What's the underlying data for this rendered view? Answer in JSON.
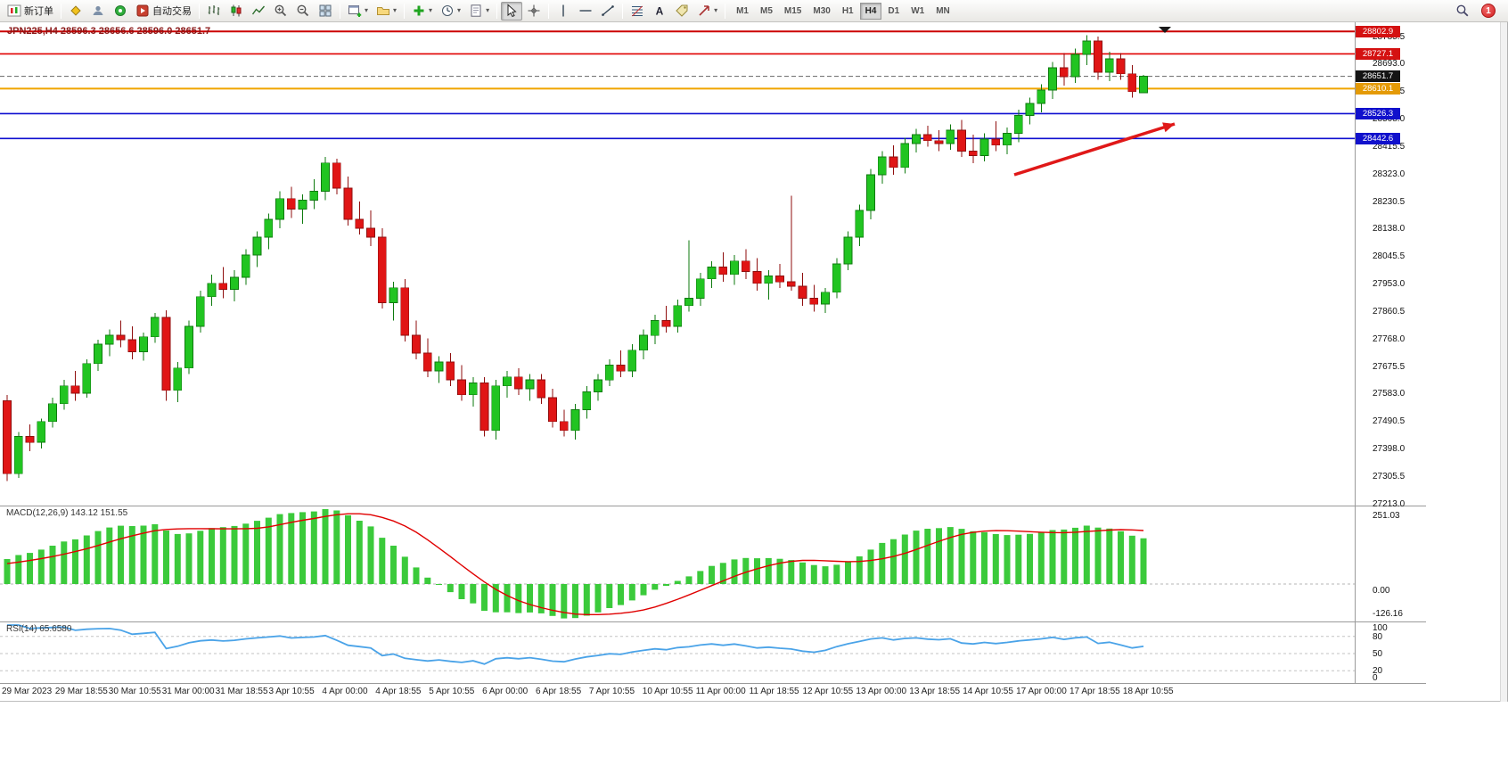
{
  "toolbar": {
    "new_order_label": "新订单",
    "auto_trading_label": "自动交易",
    "timeframes": [
      "M1",
      "M5",
      "M15",
      "M30",
      "H1",
      "H4",
      "D1",
      "W1",
      "MN"
    ],
    "active_timeframe": "H4",
    "notification_badge": "1"
  },
  "chart": {
    "title": "JPN225,H4 28596.3 28656.6 28596.0 28651.7",
    "macd_label": "MACD(12,26,9) 143.12 151.55",
    "rsi_label": "RSI(14) 65.6580"
  },
  "price_scale": {
    "top": 28785.5,
    "step": 92.5,
    "labels": [
      "28785.5",
      "28693.0",
      "28600.5",
      "28508.0",
      "28415.5",
      "28323.0",
      "28230.5",
      "28138.0",
      "28045.5",
      "27953.0",
      "27860.5",
      "27768.0",
      "27675.5",
      "27583.0",
      "27490.5",
      "27398.0",
      "27305.5",
      "27213.0"
    ]
  },
  "price_tags": [
    {
      "value": "28802.9",
      "bg": "#d41111"
    },
    {
      "value": "28727.1",
      "bg": "#d41111"
    },
    {
      "value": "28651.7",
      "bg": "#141414"
    },
    {
      "value": "28610.1",
      "bg": "#e49a06"
    },
    {
      "value": "28526.3",
      "bg": "#1111cc"
    },
    {
      "value": "28442.6",
      "bg": "#1111cc"
    }
  ],
  "macd_scale": [
    "251.03",
    "0.00",
    "-126.16"
  ],
  "rsi_scale": [
    "100",
    "80",
    "50",
    "20",
    "0"
  ],
  "time_axis": [
    "29 Mar 2023",
    "29 Mar 18:55",
    "30 Mar 10:55",
    "31 Mar 00:00",
    "31 Mar 18:55",
    "3 Apr 10:55",
    "4 Apr 00:00",
    "4 Apr 18:55",
    "5 Apr 10:55",
    "6 Apr 00:00",
    "6 Apr 18:55",
    "7 Apr 10:55",
    "10 Apr 10:55",
    "11 Apr 00:00",
    "11 Apr 18:55",
    "12 Apr 10:55",
    "13 Apr 00:00",
    "13 Apr 18:55",
    "14 Apr 10:55",
    "17 Apr 00:00",
    "17 Apr 18:55",
    "18 Apr 10:55"
  ],
  "chart_data": {
    "type": "candlestick",
    "symbol": "JPN225",
    "timeframe": "H4",
    "price_range": [
      27213.0,
      28810.0
    ],
    "price_gridline_step": 92.5,
    "current_bar_ohlc": [
      28596.3,
      28656.6,
      28596.0,
      28651.7
    ],
    "levels": [
      {
        "price": 28802.9,
        "color": "#cc0000",
        "width": 2,
        "style": "solid"
      },
      {
        "price": 28727.1,
        "color": "#e00000",
        "width": 1.6,
        "style": "solid"
      },
      {
        "price": 28651.7,
        "color": "#666666",
        "width": 1,
        "style": "dashed"
      },
      {
        "price": 28610.1,
        "color": "#f0a500",
        "width": 2,
        "style": "solid"
      },
      {
        "price": 28526.3,
        "color": "#0f0fd0",
        "width": 1.6,
        "style": "solid"
      },
      {
        "price": 28442.6,
        "color": "#0f0fd0",
        "width": 1.6,
        "style": "solid"
      }
    ],
    "indicators": [
      {
        "name": "MACD",
        "params": [
          12,
          26,
          9
        ],
        "display_values": [
          143.12,
          151.55
        ],
        "scale": [
          251.03,
          0.0,
          -126.16
        ]
      },
      {
        "name": "RSI",
        "params": [
          14
        ],
        "display_values": [
          65.658
        ],
        "scale": [
          100,
          80,
          50,
          20,
          0
        ]
      }
    ],
    "annotations": [
      {
        "type": "arrow",
        "color": "#e01818",
        "from": [
          1138,
          171
        ],
        "to": [
          1318,
          114
        ]
      }
    ],
    "candles": [
      [
        27560,
        27580,
        27290,
        27315
      ],
      [
        27315,
        27455,
        27300,
        27440
      ],
      [
        27440,
        27480,
        27390,
        27420
      ],
      [
        27420,
        27500,
        27400,
        27490
      ],
      [
        27490,
        27570,
        27470,
        27550
      ],
      [
        27550,
        27630,
        27530,
        27610
      ],
      [
        27610,
        27660,
        27560,
        27585
      ],
      [
        27585,
        27700,
        27570,
        27685
      ],
      [
        27685,
        27765,
        27660,
        27750
      ],
      [
        27750,
        27800,
        27710,
        27780
      ],
      [
        27780,
        27830,
        27740,
        27765
      ],
      [
        27765,
        27810,
        27700,
        27725
      ],
      [
        27725,
        27790,
        27695,
        27775
      ],
      [
        27775,
        27855,
        27755,
        27840
      ],
      [
        27840,
        27865,
        27560,
        27595
      ],
      [
        27595,
        27690,
        27555,
        27670
      ],
      [
        27670,
        27830,
        27650,
        27810
      ],
      [
        27810,
        27930,
        27790,
        27910
      ],
      [
        27910,
        27985,
        27880,
        27955
      ],
      [
        27955,
        28010,
        27905,
        27935
      ],
      [
        27935,
        28000,
        27895,
        27975
      ],
      [
        27975,
        28070,
        27950,
        28050
      ],
      [
        28050,
        28130,
        28010,
        28110
      ],
      [
        28110,
        28190,
        28070,
        28170
      ],
      [
        28170,
        28265,
        28140,
        28240
      ],
      [
        28240,
        28280,
        28175,
        28205
      ],
      [
        28205,
        28255,
        28155,
        28235
      ],
      [
        28235,
        28305,
        28205,
        28265
      ],
      [
        28265,
        28380,
        28235,
        28360
      ],
      [
        28360,
        28375,
        28255,
        28275
      ],
      [
        28275,
        28315,
        28150,
        28170
      ],
      [
        28170,
        28230,
        28120,
        28140
      ],
      [
        28140,
        28200,
        28080,
        28110
      ],
      [
        28110,
        28140,
        27870,
        27890
      ],
      [
        27890,
        27960,
        27830,
        27940
      ],
      [
        27940,
        27970,
        27760,
        27780
      ],
      [
        27780,
        27830,
        27700,
        27720
      ],
      [
        27720,
        27770,
        27640,
        27660
      ],
      [
        27660,
        27710,
        27620,
        27690
      ],
      [
        27690,
        27720,
        27610,
        27630
      ],
      [
        27630,
        27680,
        27560,
        27580
      ],
      [
        27580,
        27640,
        27540,
        27620
      ],
      [
        27620,
        27640,
        27440,
        27460
      ],
      [
        27460,
        27630,
        27430,
        27610
      ],
      [
        27610,
        27660,
        27570,
        27640
      ],
      [
        27640,
        27670,
        27580,
        27600
      ],
      [
        27600,
        27650,
        27560,
        27630
      ],
      [
        27630,
        27650,
        27550,
        27570
      ],
      [
        27570,
        27600,
        27470,
        27490
      ],
      [
        27490,
        27530,
        27440,
        27460
      ],
      [
        27460,
        27550,
        27430,
        27530
      ],
      [
        27530,
        27610,
        27500,
        27590
      ],
      [
        27590,
        27650,
        27560,
        27630
      ],
      [
        27630,
        27700,
        27610,
        27680
      ],
      [
        27680,
        27730,
        27640,
        27660
      ],
      [
        27660,
        27750,
        27640,
        27730
      ],
      [
        27730,
        27800,
        27700,
        27780
      ],
      [
        27780,
        27850,
        27750,
        27830
      ],
      [
        27830,
        27880,
        27790,
        27810
      ],
      [
        27810,
        27900,
        27790,
        27880
      ],
      [
        27880,
        28100,
        27860,
        27905
      ],
      [
        27905,
        27990,
        27880,
        27970
      ],
      [
        27970,
        28030,
        27940,
        28010
      ],
      [
        28010,
        28060,
        27960,
        27985
      ],
      [
        27985,
        28050,
        27950,
        28030
      ],
      [
        28030,
        28070,
        27970,
        27995
      ],
      [
        27995,
        28040,
        27930,
        27955
      ],
      [
        27955,
        28000,
        27900,
        27980
      ],
      [
        27980,
        28020,
        27940,
        27960
      ],
      [
        27960,
        28250,
        27930,
        27945
      ],
      [
        27945,
        27990,
        27880,
        27905
      ],
      [
        27905,
        27950,
        27860,
        27885
      ],
      [
        27885,
        27940,
        27855,
        27925
      ],
      [
        27925,
        28040,
        27905,
        28020
      ],
      [
        28020,
        28130,
        28000,
        28110
      ],
      [
        28110,
        28220,
        28080,
        28200
      ],
      [
        28200,
        28340,
        28170,
        28320
      ],
      [
        28320,
        28400,
        28290,
        28380
      ],
      [
        28380,
        28420,
        28320,
        28345
      ],
      [
        28345,
        28445,
        28325,
        28425
      ],
      [
        28425,
        28475,
        28395,
        28455
      ],
      [
        28455,
        28485,
        28415,
        28435
      ],
      [
        28435,
        28470,
        28400,
        28425
      ],
      [
        28425,
        28490,
        28405,
        28470
      ],
      [
        28470,
        28505,
        28380,
        28400
      ],
      [
        28400,
        28455,
        28360,
        28385
      ],
      [
        28385,
        28460,
        28365,
        28440
      ],
      [
        28440,
        28500,
        28400,
        28420
      ],
      [
        28420,
        28480,
        28390,
        28460
      ],
      [
        28460,
        28540,
        28430,
        28520
      ],
      [
        28520,
        28580,
        28490,
        28560
      ],
      [
        28560,
        28625,
        28530,
        28605
      ],
      [
        28605,
        28700,
        28575,
        28680
      ],
      [
        28680,
        28730,
        28620,
        28650
      ],
      [
        28650,
        28745,
        28630,
        28725
      ],
      [
        28725,
        28790,
        28690,
        28770
      ],
      [
        28770,
        28785,
        28640,
        28665
      ],
      [
        28665,
        28735,
        28635,
        28710
      ],
      [
        28710,
        28730,
        28640,
        28660
      ],
      [
        28660,
        28690,
        28580,
        28600
      ],
      [
        28596.3,
        28656.6,
        28596.0,
        28651.7
      ]
    ]
  }
}
